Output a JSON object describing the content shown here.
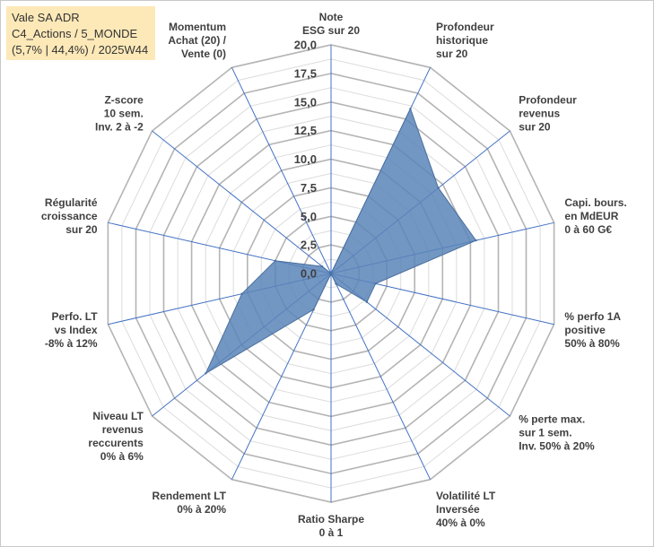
{
  "header": {
    "line1": "Vale SA ADR",
    "line2": "C4_Actions / 5_MONDE",
    "line3": "(5,7% | 44,4%) / 2025W44"
  },
  "colors": {
    "fill": "#5b85b8",
    "stroke": "#4a6f9e",
    "grid_major": "#b4b4b4",
    "grid_minor": "#dcdcdc",
    "spoke": "#4472c4",
    "label": "#404040"
  },
  "chart_data": {
    "type": "radar",
    "title": "",
    "rmin": 0,
    "rmax": 20,
    "tick_values": [
      0,
      2.5,
      5,
      7.5,
      10,
      12.5,
      15,
      17.5,
      20
    ],
    "tick_labels": [
      "0,0",
      "2,5",
      "5,0",
      "7,5",
      "10,0",
      "12,5",
      "15,0",
      "17,5",
      "20,0"
    ],
    "categories": [
      [
        "Note",
        "ESG sur 20"
      ],
      [
        "Profondeur",
        "historique",
        "sur 20"
      ],
      [
        "Profondeur",
        "revenus",
        "sur 20"
      ],
      [
        "Capi. bours.",
        "en MdEUR",
        "0 à 60 G€"
      ],
      [
        "% perfo 1A",
        "positive",
        "50% à 80%"
      ],
      [
        "% perte max.",
        "sur 1 sem.",
        "Inv. 50% à 20%"
      ],
      [
        "Volatilité LT",
        "Inversée",
        "40% à 0%"
      ],
      [
        "Ratio Sharpe",
        "0 à 1"
      ],
      [
        "Rendement LT",
        "0% à 20%"
      ],
      [
        "Niveau LT",
        "revenus",
        "reccurents",
        "0% à 6%"
      ],
      [
        "Perfo. LT",
        "vs Index",
        "-8% à 12%"
      ],
      [
        "Régularité",
        "croissance",
        "sur 20"
      ],
      [
        "Z-score",
        "10 sem.",
        "Inv. 2 à -2"
      ],
      [
        "Momentum",
        "Achat (20) /",
        "Vente (0)"
      ]
    ],
    "series": [
      {
        "name": "Vale SA ADR",
        "values": [
          0,
          16,
          12,
          13,
          4,
          4,
          1,
          0,
          3.5,
          14,
          8,
          5,
          1,
          0
        ]
      }
    ]
  }
}
